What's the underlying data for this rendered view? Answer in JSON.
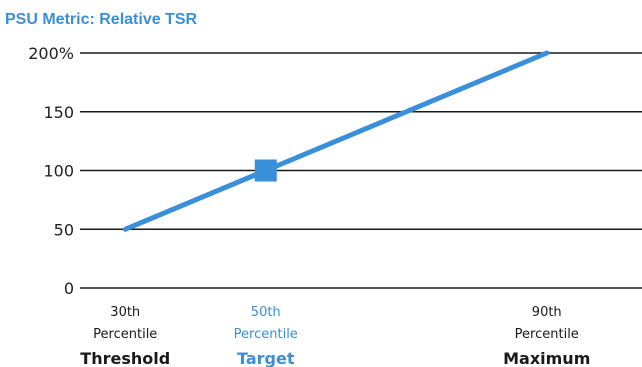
{
  "chart_data": {
    "type": "line",
    "title": "PSU Metric: Relative TSR",
    "y_ticks": [
      {
        "value": 0,
        "label": "0"
      },
      {
        "value": 50,
        "label": "50"
      },
      {
        "value": 100,
        "label": "100"
      },
      {
        "value": 150,
        "label": "150"
      },
      {
        "value": 200,
        "label": "200%"
      }
    ],
    "ylim": [
      0,
      200
    ],
    "grid": true,
    "x_labels": [
      {
        "rank": "30th",
        "sub": "Percentile",
        "name": "Threshold",
        "color": "#1a1a1a"
      },
      {
        "rank": "50th",
        "sub": "Percentile",
        "name": "Target",
        "color": "#3b8fd6"
      },
      {
        "rank": "90th",
        "sub": "Percentile",
        "name": "Maximum",
        "color": "#1a1a1a"
      }
    ],
    "series": [
      {
        "x": [
          30,
          50,
          90
        ],
        "y": [
          50,
          100,
          200
        ],
        "color": "#3a8fdb",
        "marker_at": 50
      }
    ],
    "xlim": [
      20,
      100
    ]
  }
}
